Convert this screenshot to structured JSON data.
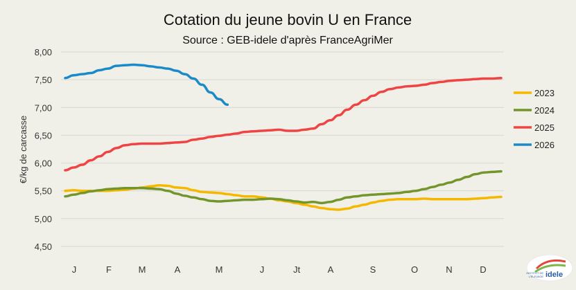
{
  "chart_data": {
    "type": "line",
    "title": "Cotation du jeune bovin U en France",
    "subtitle": "Source : GEB-idele d'après FranceAgriMer",
    "xlabel": "",
    "ylabel": "€/kg de carcasse",
    "ylim": [
      4.5,
      8.0
    ],
    "yticks": [
      "8,00",
      "7,50",
      "7,00",
      "6,50",
      "6,00",
      "5,50",
      "5,00",
      "4,50"
    ],
    "x_categories": [
      "J",
      "F",
      "M",
      "A",
      "M",
      "J",
      "Jt",
      "A",
      "S",
      "O",
      "N",
      "D"
    ],
    "grid": "horizontal",
    "legend": "right",
    "series": [
      {
        "name": "2023",
        "color": "#f5b800",
        "x": [
          1,
          2,
          3,
          4,
          5,
          6,
          7,
          8,
          9,
          10,
          11,
          12,
          13,
          14,
          15,
          16,
          17,
          18,
          19,
          20,
          21,
          22,
          23,
          24,
          25,
          26,
          27,
          28,
          29,
          30,
          31,
          32,
          33,
          34,
          35,
          36,
          37,
          38,
          39,
          40,
          41,
          42,
          43,
          44,
          45,
          46,
          47,
          48,
          49,
          50,
          51,
          52
        ],
        "values": [
          5.5,
          5.51,
          5.5,
          5.5,
          5.5,
          5.5,
          5.51,
          5.52,
          5.54,
          5.56,
          5.58,
          5.6,
          5.59,
          5.56,
          5.55,
          5.51,
          5.48,
          5.47,
          5.46,
          5.44,
          5.42,
          5.4,
          5.4,
          5.38,
          5.36,
          5.33,
          5.31,
          5.28,
          5.25,
          5.22,
          5.19,
          5.17,
          5.16,
          5.18,
          5.22,
          5.25,
          5.29,
          5.32,
          5.34,
          5.35,
          5.35,
          5.35,
          5.36,
          5.35,
          5.35,
          5.35,
          5.35,
          5.35,
          5.36,
          5.37,
          5.38,
          5.39
        ]
      },
      {
        "name": "2024",
        "color": "#72962b",
        "x": [
          1,
          2,
          3,
          4,
          5,
          6,
          7,
          8,
          9,
          10,
          11,
          12,
          13,
          14,
          15,
          16,
          17,
          18,
          19,
          20,
          21,
          22,
          23,
          24,
          25,
          26,
          27,
          28,
          29,
          30,
          31,
          32,
          33,
          34,
          35,
          36,
          37,
          38,
          39,
          40,
          41,
          42,
          43,
          44,
          45,
          46,
          47,
          48,
          49,
          50,
          51,
          52
        ],
        "values": [
          5.4,
          5.43,
          5.46,
          5.49,
          5.51,
          5.53,
          5.54,
          5.55,
          5.55,
          5.55,
          5.54,
          5.53,
          5.5,
          5.45,
          5.41,
          5.38,
          5.35,
          5.32,
          5.31,
          5.32,
          5.33,
          5.34,
          5.34,
          5.35,
          5.36,
          5.35,
          5.33,
          5.31,
          5.29,
          5.3,
          5.28,
          5.3,
          5.34,
          5.38,
          5.4,
          5.42,
          5.43,
          5.44,
          5.45,
          5.46,
          5.48,
          5.5,
          5.53,
          5.57,
          5.61,
          5.65,
          5.7,
          5.75,
          5.8,
          5.83,
          5.84,
          5.85
        ]
      },
      {
        "name": "2025",
        "color": "#ee4444",
        "x": [
          1,
          2,
          3,
          4,
          5,
          6,
          7,
          8,
          9,
          10,
          11,
          12,
          13,
          14,
          15,
          16,
          17,
          18,
          19,
          20,
          21,
          22,
          23,
          24,
          25,
          26,
          27,
          28,
          29,
          30,
          31,
          32,
          33,
          34,
          35,
          36,
          37,
          38,
          39,
          40,
          41,
          42,
          43,
          44,
          45,
          46,
          47,
          48,
          49,
          50,
          51,
          52
        ],
        "values": [
          5.87,
          5.92,
          5.97,
          6.05,
          6.12,
          6.2,
          6.27,
          6.32,
          6.34,
          6.35,
          6.35,
          6.35,
          6.36,
          6.37,
          6.38,
          6.42,
          6.44,
          6.47,
          6.49,
          6.51,
          6.53,
          6.56,
          6.57,
          6.58,
          6.59,
          6.6,
          6.58,
          6.58,
          6.6,
          6.62,
          6.7,
          6.77,
          6.86,
          6.96,
          7.05,
          7.13,
          7.21,
          7.28,
          7.33,
          7.36,
          7.38,
          7.39,
          7.41,
          7.44,
          7.46,
          7.48,
          7.49,
          7.5,
          7.51,
          7.52,
          7.52,
          7.53
        ]
      },
      {
        "name": "2026",
        "color": "#1a8ac8",
        "x": [
          1,
          2,
          3,
          4,
          5,
          6,
          7,
          8,
          9,
          10,
          11,
          12,
          13,
          14,
          15,
          16,
          17,
          18,
          19,
          20
        ],
        "values": [
          7.53,
          7.58,
          7.6,
          7.62,
          7.67,
          7.7,
          7.75,
          7.76,
          7.77,
          7.76,
          7.74,
          7.72,
          7.7,
          7.66,
          7.6,
          7.52,
          7.41,
          7.27,
          7.15,
          7.05
        ]
      }
    ]
  },
  "logo": {
    "line1": "INSTITUT DE",
    "line2": "L'ÉLEVAGE",
    "brand": "idele"
  }
}
